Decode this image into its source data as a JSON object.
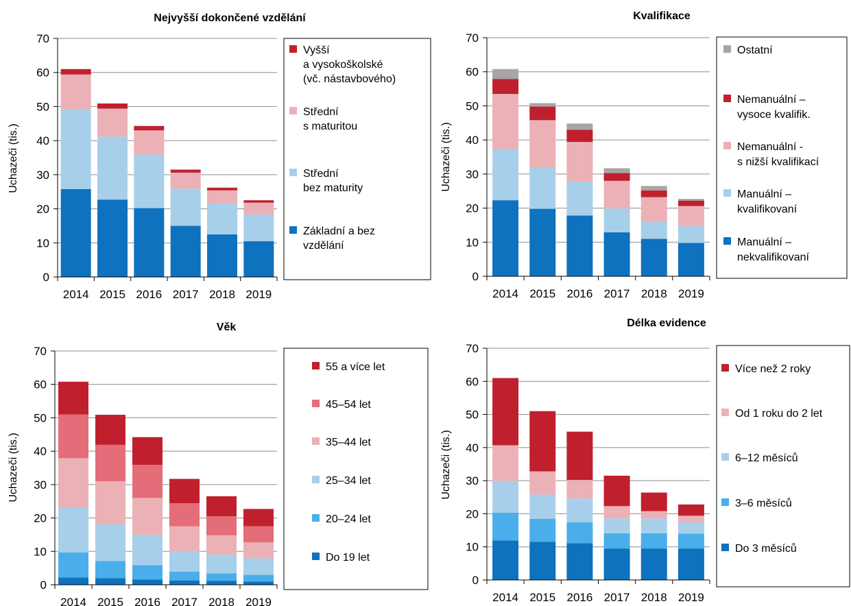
{
  "chart_data": [
    {
      "type": "bar",
      "stacked": true,
      "title": "Nejvyšší dokončené vzdělání",
      "ylabel": "Uchazeči (tis.)",
      "xlabel": "",
      "ylim": [
        0,
        70
      ],
      "yticks": [
        "0",
        "10",
        "20",
        "30",
        "40",
        "50",
        "60",
        "70"
      ],
      "categories": [
        "2014",
        "2015",
        "2016",
        "2017",
        "2018",
        "2019"
      ],
      "legend_position": "right",
      "series": [
        {
          "name": "Základní a bez vzdělání",
          "color": "#0E72BE",
          "values": [
            25.8,
            22.7,
            20.2,
            15.0,
            12.5,
            10.5
          ]
        },
        {
          "name": "Střední bez maturity",
          "color": "#A8CFEA",
          "values": [
            23.4,
            18.5,
            15.7,
            10.9,
            9.0,
            7.8
          ]
        },
        {
          "name": "Střední s maturitou",
          "color": "#EBB1B6",
          "values": [
            10.2,
            8.2,
            7.1,
            4.7,
            3.9,
            3.5
          ]
        },
        {
          "name": "Vyšší a vysokoškolské (vč. nástavbového)",
          "color": "#C0202E",
          "values": [
            1.6,
            1.5,
            1.3,
            0.9,
            0.8,
            0.7
          ]
        }
      ],
      "legend": [
        {
          "lines": [
            "Vyšší",
            "a vysokoškolské",
            "(vč. nástavbového)"
          ],
          "color": "#C0202E"
        },
        {
          "lines": [
            "Střední",
            "s maturitou"
          ],
          "color": "#EBB1B6"
        },
        {
          "lines": [
            "Střední",
            "bez maturity"
          ],
          "color": "#A8CFEA"
        },
        {
          "lines": [
            "Základní a bez",
            "vzdělání"
          ],
          "color": "#0E72BE"
        }
      ]
    },
    {
      "type": "bar",
      "stacked": true,
      "title": "Kvalifikace",
      "ylabel": "Uchazeči (tis.)",
      "xlabel": "",
      "ylim": [
        0,
        70
      ],
      "yticks": [
        "0",
        "10",
        "20",
        "30",
        "40",
        "50",
        "60",
        "70"
      ],
      "categories": [
        "2014",
        "2015",
        "2016",
        "2017",
        "2018",
        "2019"
      ],
      "legend_position": "right",
      "series": [
        {
          "name": "Manuální – nekvalifikovaní",
          "color": "#0E72BE",
          "values": [
            22.3,
            19.8,
            17.8,
            12.9,
            11.0,
            9.8
          ]
        },
        {
          "name": "Manuální – kvalifikovaní",
          "color": "#A8CFEA",
          "values": [
            15.0,
            12.0,
            10.0,
            7.0,
            5.0,
            4.9
          ]
        },
        {
          "name": "Nemanuální - s nižší kvalifikací",
          "color": "#EBB1B6",
          "values": [
            16.2,
            14.0,
            11.6,
            8.1,
            7.2,
            5.9
          ]
        },
        {
          "name": "Nemanuální – vysoce kvalifik.",
          "color": "#C0202E",
          "values": [
            4.4,
            4.0,
            3.6,
            2.3,
            2.0,
            1.6
          ]
        },
        {
          "name": "Ostatní",
          "color": "#A6A6A6",
          "values": [
            2.9,
            1.0,
            1.8,
            1.4,
            1.3,
            0.5
          ]
        }
      ],
      "legend": [
        {
          "lines": [
            "Ostatní"
          ],
          "color": "#A6A6A6"
        },
        {
          "lines": [
            "Nemanuální –",
            "vysoce kvalifik."
          ],
          "color": "#C0202E"
        },
        {
          "lines": [
            "Nemanuální -",
            "s nižší kvalifikací"
          ],
          "color": "#EBB1B6"
        },
        {
          "lines": [
            "Manuální –",
            "kvalifikovaní"
          ],
          "color": "#A8CFEA"
        },
        {
          "lines": [
            "Manuální –",
            "nekvalifikovaní"
          ],
          "color": "#0E72BE"
        }
      ]
    },
    {
      "type": "bar",
      "stacked": true,
      "title": "Věk",
      "ylabel": "Uchazeči (tis.)",
      "xlabel": "",
      "ylim": [
        0,
        70
      ],
      "yticks": [
        "0",
        "10",
        "20",
        "30",
        "40",
        "50",
        "60",
        "70"
      ],
      "categories": [
        "2014",
        "2015",
        "2016",
        "2017",
        "2018",
        "2019"
      ],
      "legend_position": "right",
      "series": [
        {
          "name": "Do 19 let",
          "color": "#0E72BE",
          "values": [
            2.2,
            2.0,
            1.6,
            1.3,
            1.2,
            1.0
          ]
        },
        {
          "name": "20–24 let",
          "color": "#4AAEEA",
          "values": [
            7.5,
            5.1,
            4.3,
            2.6,
            2.2,
            2.0
          ]
        },
        {
          "name": "25–34 let",
          "color": "#A8CFEA",
          "values": [
            13.5,
            11.0,
            9.1,
            6.2,
            5.6,
            4.9
          ]
        },
        {
          "name": "35–44 let",
          "color": "#EBB1B6",
          "values": [
            14.7,
            12.9,
            11.0,
            7.4,
            5.8,
            4.8
          ]
        },
        {
          "name": "45–54 let",
          "color": "#E36D78",
          "values": [
            13.1,
            10.9,
            9.9,
            6.9,
            5.7,
            4.8
          ]
        },
        {
          "name": "55 a více let",
          "color": "#C0202E",
          "values": [
            9.8,
            9.0,
            8.3,
            7.3,
            6.0,
            5.2
          ]
        }
      ],
      "legend": [
        {
          "lines": [
            "55 a více let"
          ],
          "color": "#C0202E"
        },
        {
          "lines": [
            "45–54 let"
          ],
          "color": "#E36D78"
        },
        {
          "lines": [
            "35–44 let"
          ],
          "color": "#EBB1B6"
        },
        {
          "lines": [
            "25–34 let"
          ],
          "color": "#A8CFEA"
        },
        {
          "lines": [
            "20–24 let"
          ],
          "color": "#4AAEEA"
        },
        {
          "lines": [
            "Do 19 let"
          ],
          "color": "#0E72BE"
        }
      ]
    },
    {
      "type": "bar",
      "stacked": true,
      "title": "Délka evidence",
      "ylabel": "Uchazeči (tis.)",
      "xlabel": "",
      "ylim": [
        0,
        70
      ],
      "yticks": [
        "0",
        "10",
        "20",
        "30",
        "40",
        "50",
        "60",
        "70"
      ],
      "categories": [
        "2014",
        "2015",
        "2016",
        "2017",
        "2018",
        "2019"
      ],
      "legend_position": "right",
      "series": [
        {
          "name": "Do 3 měsíců",
          "color": "#0E72BE",
          "values": [
            11.9,
            11.5,
            11.1,
            9.5,
            9.5,
            9.5
          ]
        },
        {
          "name": "3–6 měsíců",
          "color": "#4AAEEA",
          "values": [
            8.4,
            7.0,
            6.3,
            4.6,
            4.6,
            4.5
          ]
        },
        {
          "name": "6–12 měsíců",
          "color": "#A8CFEA",
          "values": [
            9.6,
            7.3,
            7.2,
            4.5,
            4.5,
            3.4
          ]
        },
        {
          "name": "Od 1 roku do 2 let",
          "color": "#EBB1B6",
          "values": [
            10.8,
            7.0,
            5.6,
            3.7,
            2.2,
            2.0
          ]
        },
        {
          "name": "Více než 2 roky",
          "color": "#C0202E",
          "values": [
            20.3,
            18.2,
            14.6,
            9.2,
            5.6,
            3.4
          ]
        }
      ],
      "legend": [
        {
          "lines": [
            "Více než 2 roky"
          ],
          "color": "#C0202E"
        },
        {
          "lines": [
            "Od 1 roku do 2 let"
          ],
          "color": "#EBB1B6"
        },
        {
          "lines": [
            "6–12 měsíců"
          ],
          "color": "#A8CFEA"
        },
        {
          "lines": [
            "3–6 měsíců"
          ],
          "color": "#4AAEEA"
        },
        {
          "lines": [
            "Do 3 měsíců"
          ],
          "color": "#0E72BE"
        }
      ]
    }
  ]
}
